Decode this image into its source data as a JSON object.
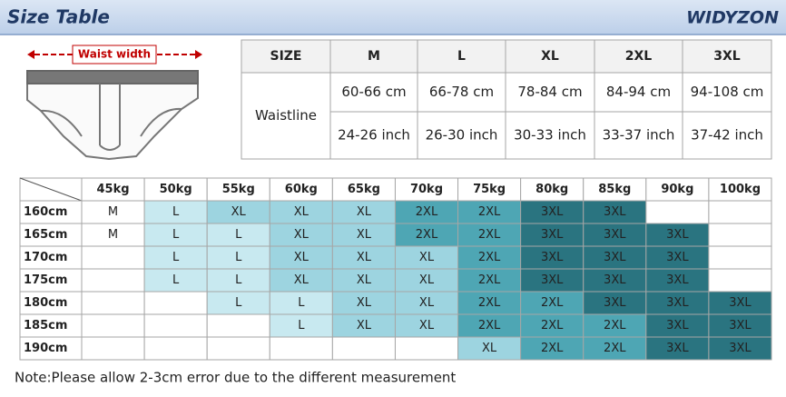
{
  "header": {
    "title": "Size Table",
    "brand": "WIDYZON"
  },
  "diagram": {
    "label": "Waist width"
  },
  "size_table": {
    "header": [
      "SIZE",
      "M",
      "L",
      "XL",
      "2XL",
      "3XL"
    ],
    "row_label": "Waistline",
    "rows": [
      [
        "60-66 cm",
        "66-78 cm",
        "78-84 cm",
        "84-94 cm",
        "94-108 cm"
      ],
      [
        "24-26 inch",
        "26-30 inch",
        "30-33 inch",
        "33-37 inch",
        "37-42 inch"
      ]
    ]
  },
  "fit_table": {
    "weights": [
      "45kg",
      "50kg",
      "55kg",
      "60kg",
      "65kg",
      "70kg",
      "75kg",
      "80kg",
      "85kg",
      "90kg",
      "100kg"
    ],
    "heights": [
      "160cm",
      "165cm",
      "170cm",
      "175cm",
      "180cm",
      "185cm",
      "190cm"
    ],
    "cells": [
      [
        "M",
        "L",
        "XL",
        "XL",
        "XL",
        "2XL",
        "2XL",
        "3XL",
        "3XL",
        null,
        null
      ],
      [
        "M",
        "L",
        "L",
        "XL",
        "XL",
        "2XL",
        "2XL",
        "3XL",
        "3XL",
        "3XL",
        null
      ],
      [
        null,
        "L",
        "L",
        "XL",
        "XL",
        "XL",
        "2XL",
        "3XL",
        "3XL",
        "3XL",
        null
      ],
      [
        null,
        "L",
        "L",
        "XL",
        "XL",
        "XL",
        "2XL",
        "3XL",
        "3XL",
        "3XL",
        null
      ],
      [
        null,
        null,
        "L",
        "L",
        "XL",
        "XL",
        "2XL",
        "2XL",
        "3XL",
        "3XL",
        "3XL"
      ],
      [
        null,
        null,
        null,
        "L",
        "XL",
        "XL",
        "2XL",
        "2XL",
        "2XL",
        "3XL",
        "3XL"
      ],
      [
        null,
        null,
        null,
        null,
        null,
        null,
        "XL",
        "2XL",
        "2XL",
        "3XL",
        "3XL"
      ]
    ],
    "palette": {
      "M": "#ffffff",
      "L": "#c8e9f0",
      "XL": "#9dd4e0",
      "2XL": "#4ea6b4",
      "3XL": "#2a7480"
    }
  },
  "note": "Note:Please allow 2-3cm error due to the different measurement"
}
